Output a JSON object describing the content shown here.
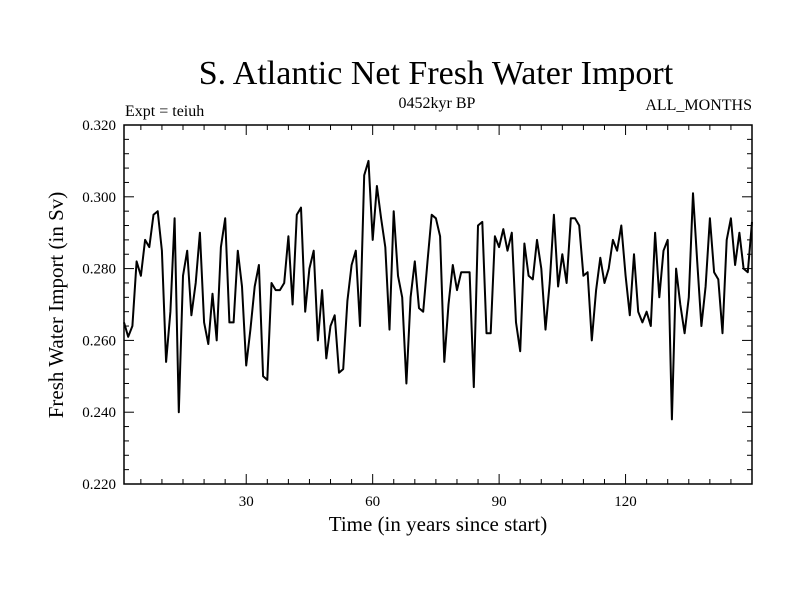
{
  "chart_data": {
    "type": "line",
    "title": "S. Atlantic Net Fresh Water Import",
    "subtitle_left": "Expt = teiuh",
    "subtitle_center": "0452kyr BP",
    "subtitle_right": "ALL_MONTHS",
    "xlabel": "Time (in years since start)",
    "ylabel": "Fresh Water Import (in Sv)",
    "xlim": [
      1,
      150
    ],
    "ylim": [
      0.22,
      0.32
    ],
    "xticks": [
      30,
      60,
      90,
      120
    ],
    "xtick_labels": [
      "30",
      "60",
      "90",
      "120"
    ],
    "yticks": [
      0.22,
      0.24,
      0.26,
      0.28,
      0.3,
      0.32
    ],
    "ytick_labels": [
      "0.220",
      "0.240",
      "0.260",
      "0.280",
      "0.300",
      "0.320"
    ],
    "series": [
      {
        "name": "Net Fresh Water Import",
        "color": "#000000",
        "x": [
          1,
          2,
          3,
          4,
          5,
          6,
          7,
          8,
          9,
          10,
          11,
          12,
          13,
          14,
          15,
          16,
          17,
          18,
          19,
          20,
          21,
          22,
          23,
          24,
          25,
          26,
          27,
          28,
          29,
          30,
          31,
          32,
          33,
          34,
          35,
          36,
          37,
          38,
          39,
          40,
          41,
          42,
          43,
          44,
          45,
          46,
          47,
          48,
          49,
          50,
          51,
          52,
          53,
          54,
          55,
          56,
          57,
          58,
          59,
          60,
          61,
          62,
          63,
          64,
          65,
          66,
          67,
          68,
          69,
          70,
          71,
          72,
          73,
          74,
          75,
          76,
          77,
          78,
          79,
          80,
          81,
          82,
          83,
          84,
          85,
          86,
          87,
          88,
          89,
          90,
          91,
          92,
          93,
          94,
          95,
          96,
          97,
          98,
          99,
          100,
          101,
          102,
          103,
          104,
          105,
          106,
          107,
          108,
          109,
          110,
          111,
          112,
          113,
          114,
          115,
          116,
          117,
          118,
          119,
          120,
          121,
          122,
          123,
          124,
          125,
          126,
          127,
          128,
          129,
          130,
          131,
          132,
          133,
          134,
          135,
          136,
          137,
          138,
          139,
          140,
          141,
          142,
          143,
          144,
          145,
          146,
          147,
          148,
          149,
          150
        ],
        "values": [
          0.265,
          0.261,
          0.264,
          0.282,
          0.278,
          0.288,
          0.286,
          0.295,
          0.296,
          0.285,
          0.254,
          0.268,
          0.294,
          0.24,
          0.278,
          0.285,
          0.267,
          0.276,
          0.29,
          0.265,
          0.259,
          0.273,
          0.26,
          0.286,
          0.294,
          0.265,
          0.265,
          0.285,
          0.275,
          0.253,
          0.263,
          0.275,
          0.281,
          0.25,
          0.249,
          0.276,
          0.274,
          0.274,
          0.276,
          0.289,
          0.27,
          0.295,
          0.297,
          0.268,
          0.28,
          0.285,
          0.26,
          0.274,
          0.255,
          0.264,
          0.267,
          0.251,
          0.252,
          0.271,
          0.281,
          0.285,
          0.264,
          0.306,
          0.31,
          0.288,
          0.303,
          0.294,
          0.286,
          0.263,
          0.296,
          0.278,
          0.272,
          0.248,
          0.272,
          0.282,
          0.269,
          0.268,
          0.282,
          0.295,
          0.294,
          0.289,
          0.254,
          0.27,
          0.281,
          0.274,
          0.279,
          0.279,
          0.279,
          0.247,
          0.292,
          0.293,
          0.262,
          0.262,
          0.289,
          0.286,
          0.291,
          0.285,
          0.29,
          0.265,
          0.257,
          0.287,
          0.278,
          0.277,
          0.288,
          0.28,
          0.263,
          0.276,
          0.295,
          0.275,
          0.284,
          0.276,
          0.294,
          0.294,
          0.292,
          0.278,
          0.279,
          0.26,
          0.274,
          0.283,
          0.276,
          0.28,
          0.288,
          0.285,
          0.292,
          0.278,
          0.267,
          0.284,
          0.268,
          0.265,
          0.268,
          0.264,
          0.29,
          0.272,
          0.285,
          0.288,
          0.238,
          0.28,
          0.27,
          0.262,
          0.272,
          0.301,
          0.282,
          0.264,
          0.275,
          0.294,
          0.279,
          0.277,
          0.262,
          0.288,
          0.294,
          0.281,
          0.29,
          0.28,
          0.279,
          0.293
        ]
      }
    ]
  }
}
